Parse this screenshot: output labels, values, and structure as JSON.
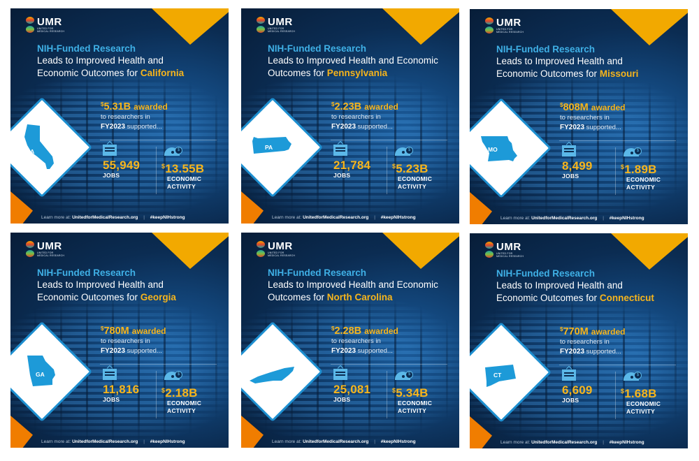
{
  "common": {
    "logo": {
      "name": "UMR",
      "subtitle_line1": "United for",
      "subtitle_line2": "Medical Research"
    },
    "headline_prefix": "NIH-Funded Research",
    "award_suffix": "awarded",
    "award_line1": "to researchers in",
    "award_year": "FY2023",
    "award_line2": "supported...",
    "jobs_label": "JOBS",
    "econ_label_1": "ECONOMIC",
    "econ_label_2": "ACTIVITY",
    "footer_prefix": "Learn more at:",
    "footer_url": "UnitedforMedicalResearch.org",
    "footer_separator": "|",
    "footer_hashtag": "#keepNIHstrong",
    "currency": "$",
    "colors": {
      "navy": "#0b2c52",
      "accent_blue": "#3fb0e6",
      "gold": "#f7b51c",
      "orange": "#f07d00",
      "white": "#ffffff"
    }
  },
  "cards": [
    {
      "state": "California",
      "abbr": "CA",
      "line1": "Leads to Improved Health and",
      "line2": "Economic Outcomes for",
      "award": "5.31B",
      "jobs": "55,949",
      "econ": "13.55B"
    },
    {
      "state": "Pennsylvania",
      "abbr": "PA",
      "line1": "Leads to Improved Health and Economic",
      "line2": "Outcomes for",
      "award": "2.23B",
      "jobs": "21,784",
      "econ": "5.23B"
    },
    {
      "state": "Missouri",
      "abbr": "MO",
      "line1": "Leads to Improved Health and",
      "line2": "Economic Outcomes for",
      "award": "808M",
      "jobs": "8,499",
      "econ": "1.89B"
    },
    {
      "state": "Georgia",
      "abbr": "GA",
      "line1": "Leads to Improved Health and",
      "line2": "Economic Outcomes for",
      "award": "780M",
      "jobs": "11,816",
      "econ": "2.18B"
    },
    {
      "state": "North Carolina",
      "abbr": "NC",
      "line1": "Leads to Improved Health and Economic",
      "line2": "Outcomes for",
      "award": "2.28B",
      "jobs": "25,081",
      "econ": "5.34B"
    },
    {
      "state": "Connecticut",
      "abbr": "CT",
      "line1": "Leads to Improved Health and",
      "line2": "Economic Outcomes for",
      "award": "770M",
      "jobs": "6,609",
      "econ": "1.68B"
    }
  ]
}
